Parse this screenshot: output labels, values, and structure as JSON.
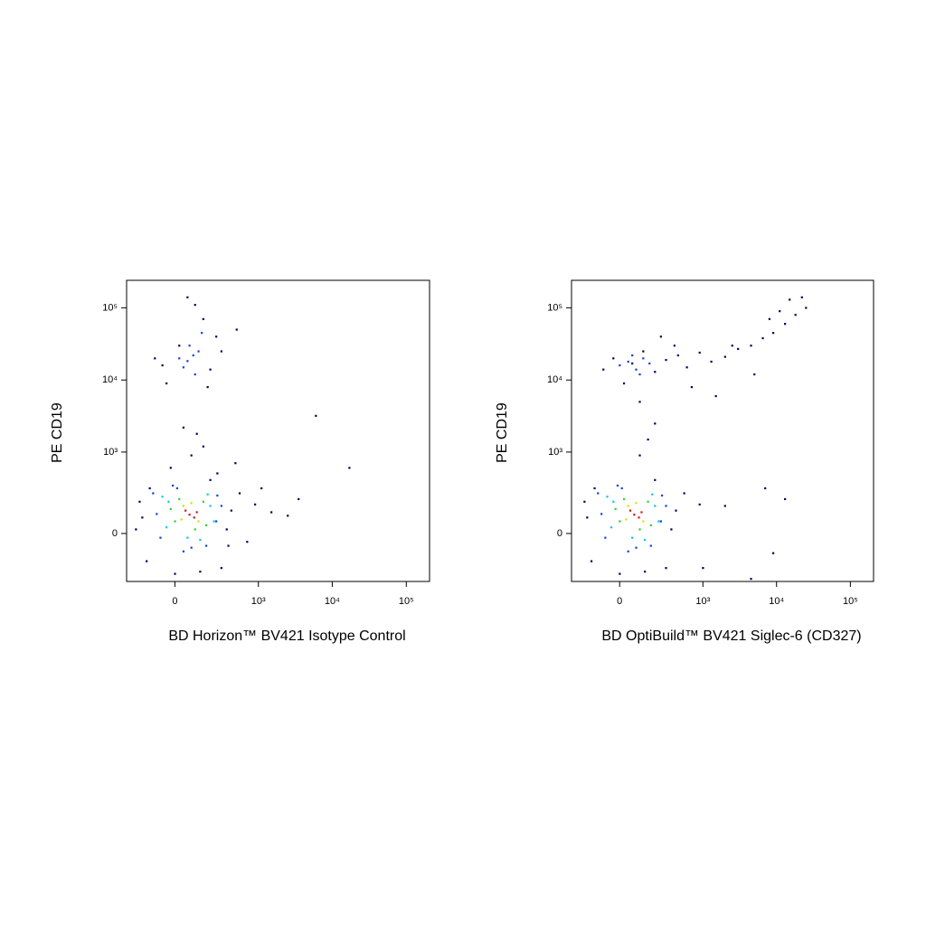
{
  "chart_data": [
    {
      "type": "scatter",
      "xlabel": "BD Horizon™ BV421 Isotype Control",
      "ylabel": "PE CD19",
      "xscale": "arcsinh",
      "yscale": "arcsinh",
      "cofactor": 150,
      "xlim": [
        -320,
        206000
      ],
      "ylim": [
        -330,
        240000
      ],
      "xticks": [
        0,
        {
          "value": 1000,
          "label": "10³"
        },
        {
          "value": 10000,
          "label": "10⁴"
        },
        {
          "value": 100000,
          "label": "10⁵"
        }
      ],
      "yticks": [
        0,
        {
          "value": 1000,
          "label": "10³"
        },
        {
          "value": 10000,
          "label": "10⁴"
        },
        {
          "value": 100000,
          "label": "10⁵"
        }
      ],
      "series": [
        {
          "color": "#000060",
          "x": [
            -180,
            360,
            -150,
            420,
            0,
            130,
            -130,
            300,
            200,
            -200,
            550,
            900,
            1500,
            700,
            1100,
            2500,
            3500,
            6000,
            17000,
            480,
            -40,
            200,
            20,
            150,
            -100,
            250,
            100,
            60,
            180,
            300,
            500,
            -60,
            40,
            110,
            80,
            150,
            -230,
            380,
            260,
            -20
          ],
          "values": [
            80,
            20,
            -150,
            120,
            -250,
            -230,
            300,
            -200,
            400,
            180,
            250,
            160,
            110,
            -40,
            300,
            90,
            200,
            3200,
            600,
            700,
            9000,
            14000,
            30000,
            70000,
            20000,
            40000,
            110000,
            140000,
            8000,
            25000,
            50000,
            16000,
            2200,
            1800,
            900,
            1200,
            20,
            -60,
            500,
            600
          ]
        },
        {
          "color": "#1040e0",
          "x": [
            -90,
            250,
            -110,
            80,
            300,
            10,
            170,
            -70,
            260,
            40,
            -10,
            60,
            90,
            40,
            120,
            70,
            100,
            20,
            140
          ],
          "values": [
            100,
            60,
            250,
            -70,
            150,
            300,
            -60,
            -20,
            230,
            -90,
            330,
            18352,
            22000,
            15000,
            25000,
            30000,
            12000,
            20000,
            45000
          ]
        },
        {
          "color": "#00c8e8",
          "x": [
            -40,
            200,
            -60,
            60,
            230,
            130,
            -30,
            180
          ],
          "values": [
            30,
            150,
            220,
            -20,
            60,
            -30,
            180,
            240
          ]
        },
        {
          "color": "#2fd02f",
          "x": [
            0,
            150,
            20,
            170,
            100,
            -20
          ],
          "values": [
            60,
            180,
            200,
            40,
            20,
            130
          ]
        },
        {
          "color": "#d8e000",
          "x": [
            40,
            120,
            80,
            30
          ],
          "values": [
            150,
            60,
            170,
            70
          ]
        },
        {
          "color": "#e01010",
          "x": [
            70,
            95,
            50,
            110
          ],
          "values": [
            96,
            80,
            120,
            110
          ]
        }
      ]
    },
    {
      "type": "scatter",
      "xlabel": "BD OptiBuild™ BV421 Siglec-6 (CD327)",
      "ylabel": "PE CD19",
      "xscale": "arcsinh",
      "yscale": "arcsinh",
      "cofactor": 150,
      "xlim": [
        -320,
        206000
      ],
      "ylim": [
        -330,
        240000
      ],
      "xticks": [
        0,
        {
          "value": 1000,
          "label": "10³"
        },
        {
          "value": 10000,
          "label": "10⁴"
        },
        {
          "value": 100000,
          "label": "10⁵"
        }
      ],
      "yticks": [
        0,
        {
          "value": 1000,
          "label": "10³"
        },
        {
          "value": 10000,
          "label": "10⁴"
        },
        {
          "value": 100000,
          "label": "10⁵"
        }
      ],
      "series": [
        {
          "color": "#000060",
          "x": [
            -180,
            360,
            -150,
            420,
            0,
            130,
            -130,
            300,
            200,
            -200,
            550,
            900,
            1000,
            2000,
            4500,
            7000,
            13000,
            9000,
            -80,
            -30,
            20,
            60,
            120,
            200,
            300,
            450,
            600,
            900,
            1300,
            2000,
            3000,
            4500,
            6500,
            9000,
            13000,
            18000,
            25000,
            700,
            1500,
            2500,
            5000,
            8000,
            11000,
            15000,
            22000,
            400,
            250,
            100,
            150,
            200,
            100
          ],
          "values": [
            80,
            20,
            -150,
            120,
            -250,
            -230,
            300,
            -200,
            400,
            180,
            250,
            160,
            -200,
            150,
            -300,
            300,
            200,
            -100,
            14000,
            20000,
            9000,
            17000,
            25000,
            13000,
            19000,
            22000,
            15000,
            24000,
            18000,
            21000,
            27000,
            30000,
            38000,
            45000,
            60000,
            80000,
            100000,
            8000,
            6000,
            30000,
            12000,
            70000,
            90000,
            130000,
            140000,
            30000,
            40000,
            5000,
            1500,
            2500,
            900
          ]
        },
        {
          "color": "#1040e0",
          "x": [
            -90,
            250,
            -110,
            80,
            300,
            10,
            170,
            -70,
            260,
            40,
            -10,
            0,
            40,
            80,
            120,
            160,
            60,
            100
          ],
          "values": [
            100,
            60,
            250,
            -70,
            150,
            300,
            -60,
            -20,
            230,
            -90,
            330,
            16000,
            18000,
            14000,
            20000,
            17000,
            22000,
            12000
          ]
        },
        {
          "color": "#00c8e8",
          "x": [
            -40,
            200,
            -60,
            60,
            230,
            130,
            -30,
            180
          ],
          "values": [
            30,
            150,
            220,
            -20,
            60,
            -30,
            180,
            240
          ]
        },
        {
          "color": "#2fd02f",
          "x": [
            0,
            150,
            20,
            170,
            100,
            -20
          ],
          "values": [
            60,
            180,
            200,
            40,
            20,
            130
          ]
        },
        {
          "color": "#d8e000",
          "x": [
            40,
            120,
            80,
            30
          ],
          "values": [
            150,
            60,
            170,
            70
          ]
        },
        {
          "color": "#e01010",
          "x": [
            70,
            95,
            50,
            110
          ],
          "values": [
            96,
            80,
            120,
            110
          ]
        }
      ]
    }
  ]
}
